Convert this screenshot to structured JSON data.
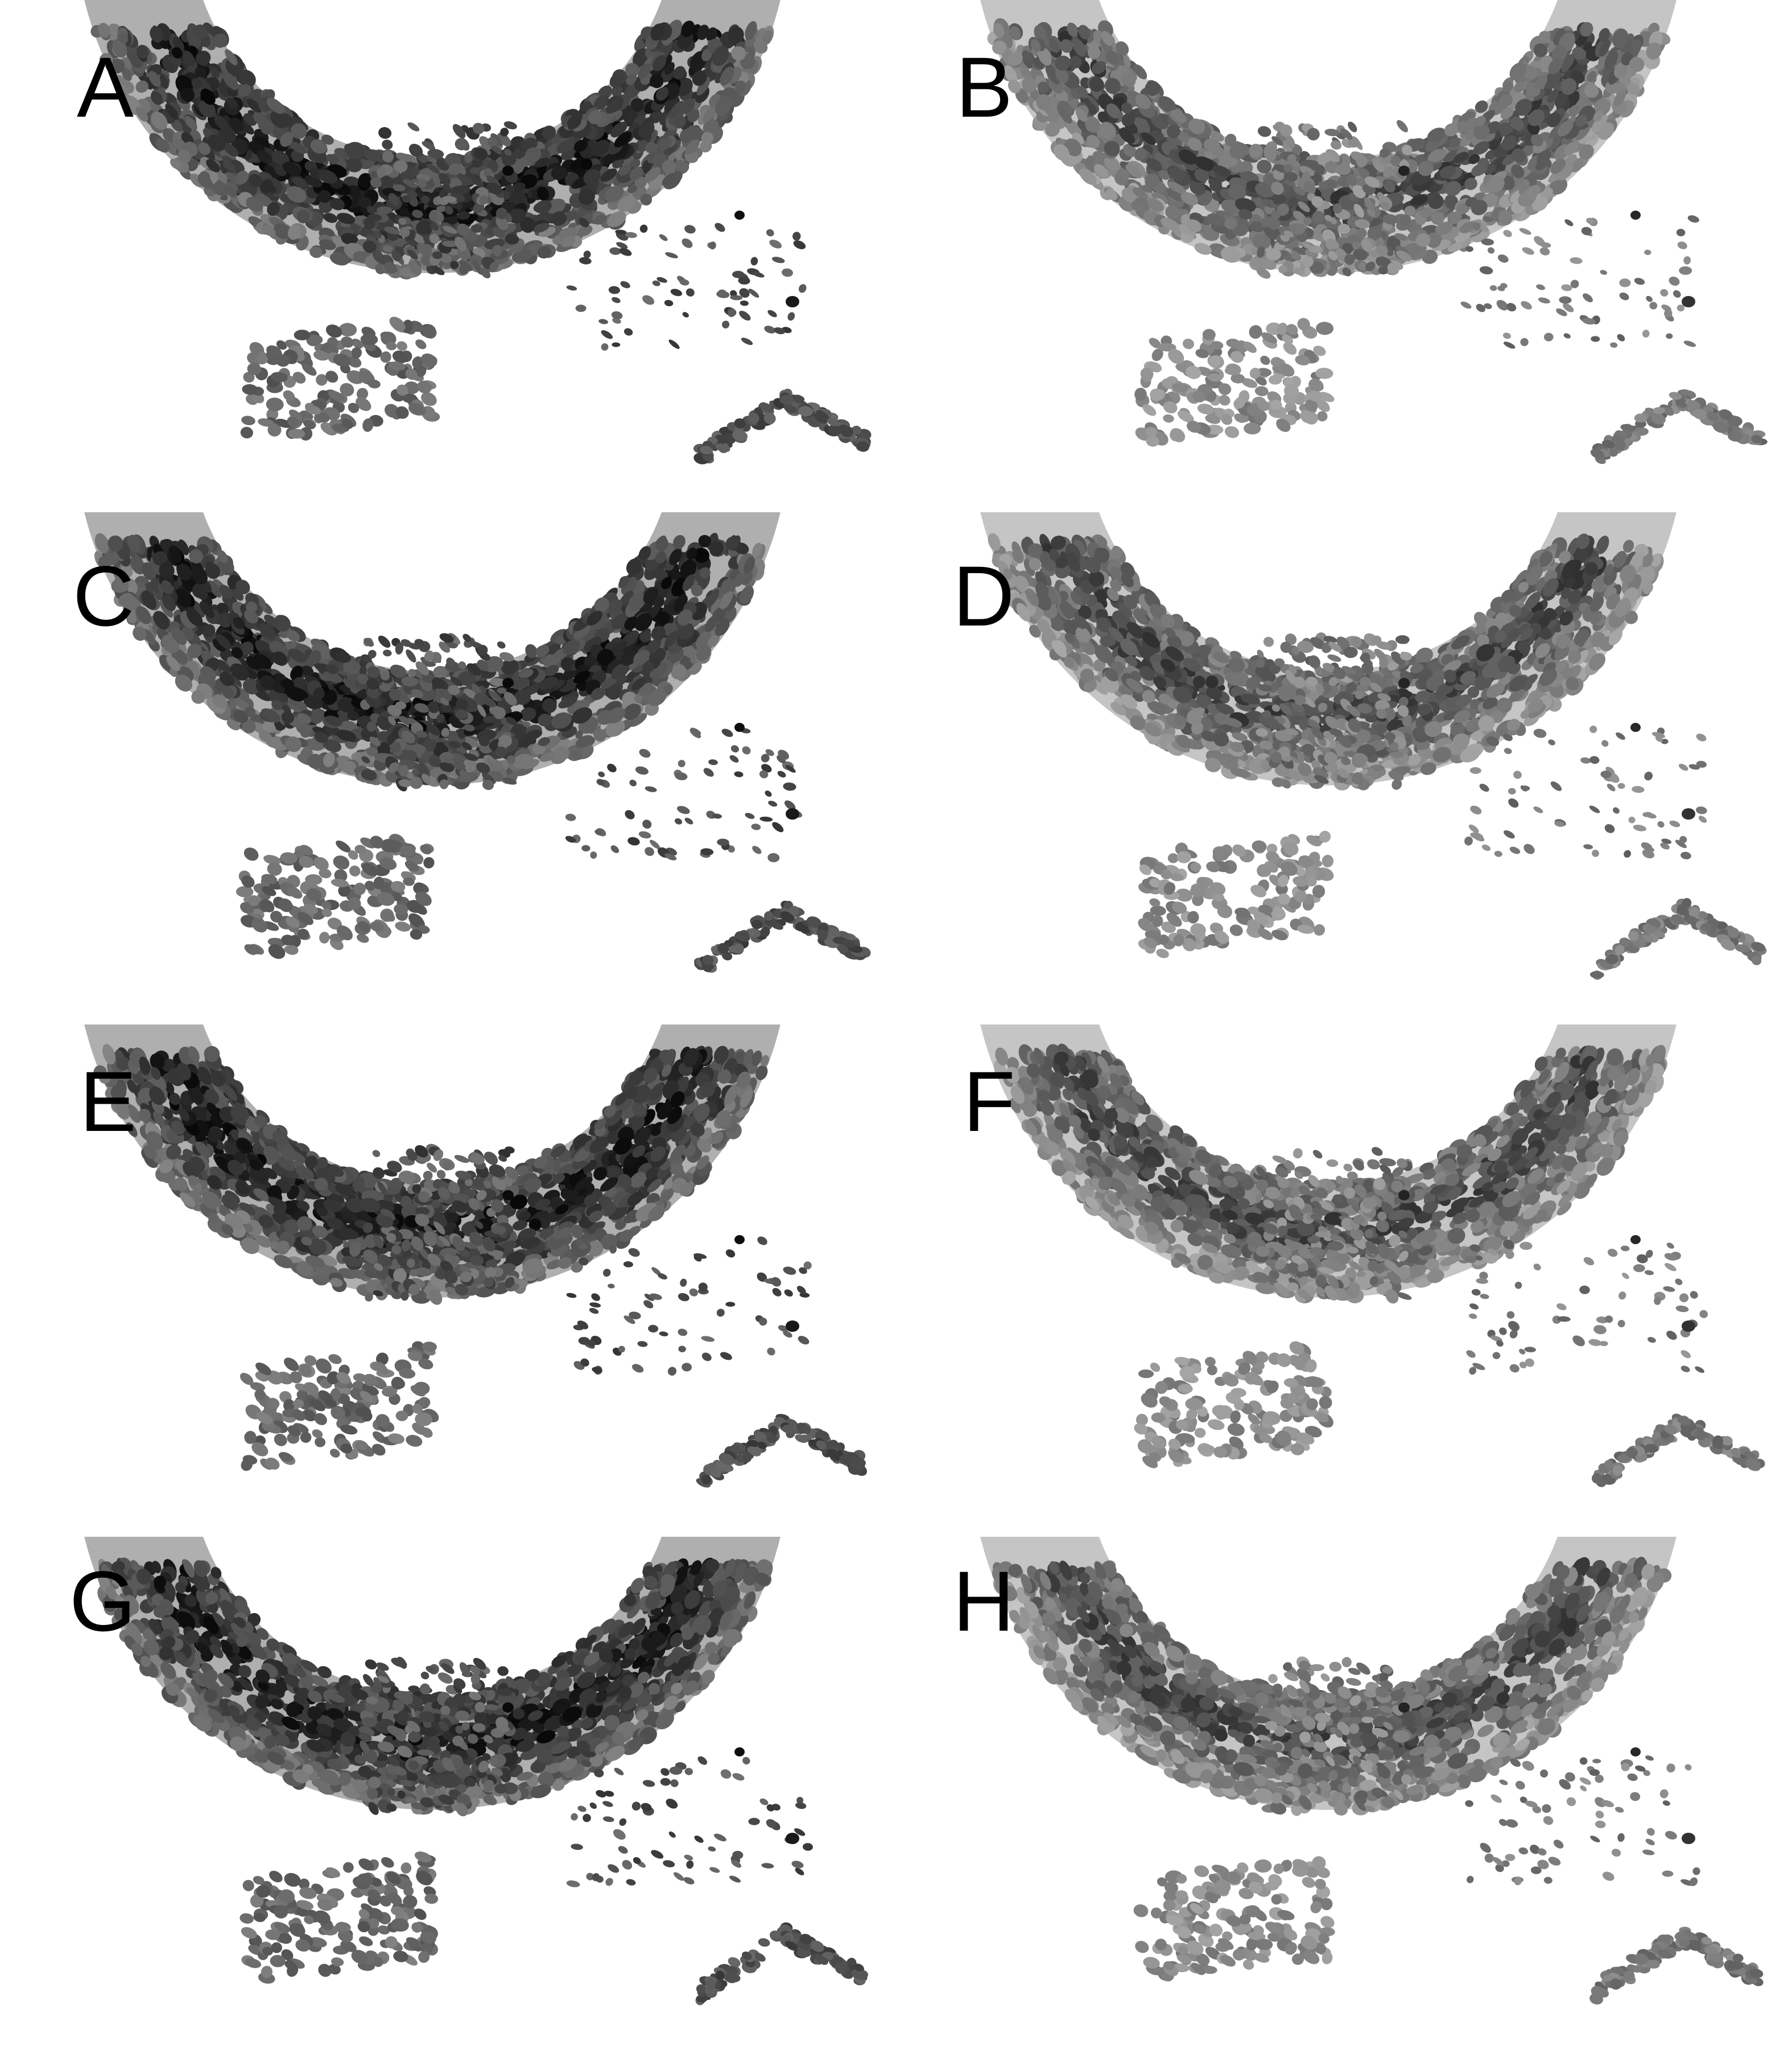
{
  "panels": [
    {
      "label": "A",
      "tone": "dark"
    },
    {
      "label": "B",
      "tone": "light"
    },
    {
      "label": "C",
      "tone": "dark"
    },
    {
      "label": "D",
      "tone": "light"
    },
    {
      "label": "E",
      "tone": "dark"
    },
    {
      "label": "F",
      "tone": "light"
    },
    {
      "label": "G",
      "tone": "dark"
    },
    {
      "label": "H",
      "tone": "light"
    }
  ],
  "colors": {
    "background": "#ffffff",
    "label": "#000000",
    "cell_darkest": "#050505",
    "cell_dark": "#2a2a2a",
    "cell_mid": "#555555",
    "cell_light": "#7f7f7f",
    "cell_lightest": "#9a9a9a"
  }
}
